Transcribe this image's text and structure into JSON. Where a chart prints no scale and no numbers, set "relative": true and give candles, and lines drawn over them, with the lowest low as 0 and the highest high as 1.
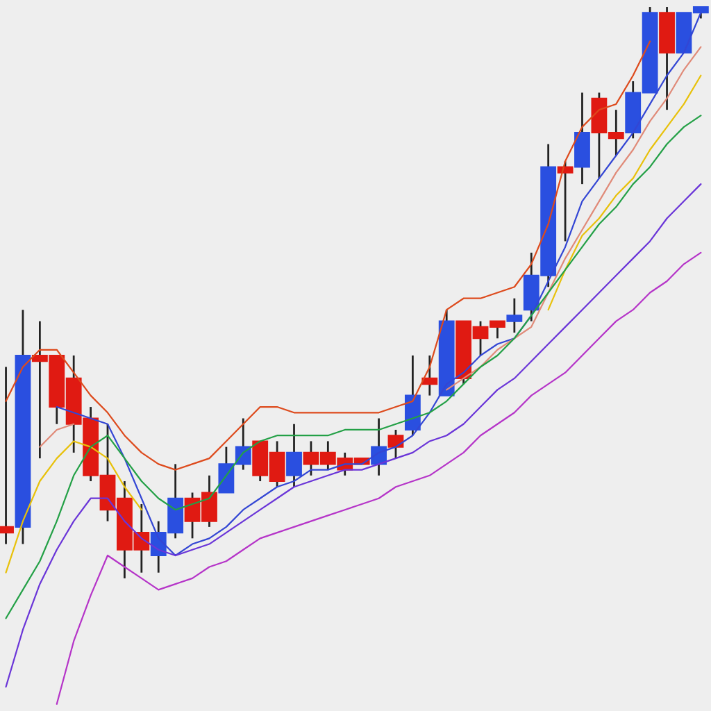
{
  "chart_data": {
    "type": "candlestick",
    "relative": true,
    "categories": [
      null,
      null,
      null,
      null,
      null,
      null,
      null,
      null,
      null,
      null,
      null,
      null,
      null,
      null,
      null,
      null,
      null,
      null,
      null,
      null,
      null,
      null,
      null,
      null,
      null,
      null,
      null,
      null,
      null,
      null,
      null,
      null,
      null,
      null,
      null,
      null,
      null,
      null,
      null,
      null,
      null,
      null
    ],
    "ohlc": [
      [
        0.09,
        0.37,
        0.06,
        0.08
      ],
      [
        0.09,
        0.47,
        0.06,
        0.39
      ],
      [
        0.39,
        0.45,
        0.21,
        0.38
      ],
      [
        0.39,
        0.39,
        0.27,
        0.3
      ],
      [
        0.35,
        0.39,
        0.22,
        0.27
      ],
      [
        0.28,
        0.3,
        0.17,
        0.18
      ],
      [
        0.18,
        0.27,
        0.1,
        0.12
      ],
      [
        0.14,
        0.17,
        0.0,
        0.05
      ],
      [
        0.08,
        0.13,
        0.01,
        0.05
      ],
      [
        0.04,
        0.1,
        0.01,
        0.08
      ],
      [
        0.08,
        0.2,
        0.07,
        0.14
      ],
      [
        0.14,
        0.15,
        0.07,
        0.1
      ],
      [
        0.15,
        0.18,
        0.09,
        0.1
      ],
      [
        0.15,
        0.23,
        0.15,
        0.2
      ],
      [
        0.2,
        0.28,
        0.19,
        0.23
      ],
      [
        0.24,
        0.24,
        0.17,
        0.18
      ],
      [
        0.22,
        0.24,
        0.16,
        0.17
      ],
      [
        0.18,
        0.27,
        0.16,
        0.22
      ],
      [
        0.22,
        0.24,
        0.18,
        0.2
      ],
      [
        0.22,
        0.24,
        0.19,
        0.2
      ],
      [
        0.21,
        0.22,
        0.18,
        0.19
      ],
      [
        0.21,
        0.21,
        0.2,
        0.2
      ],
      [
        0.2,
        0.28,
        0.18,
        0.23
      ],
      [
        0.25,
        0.26,
        0.21,
        0.23
      ],
      [
        0.26,
        0.39,
        0.25,
        0.32
      ],
      [
        0.35,
        0.39,
        0.32,
        0.34
      ],
      [
        0.32,
        0.47,
        0.32,
        0.45
      ],
      [
        0.45,
        0.45,
        0.34,
        0.35
      ],
      [
        0.44,
        0.45,
        0.39,
        0.42
      ],
      [
        0.45,
        0.45,
        0.42,
        0.44
      ],
      [
        0.45,
        0.49,
        0.43,
        0.46
      ],
      [
        0.47,
        0.57,
        0.45,
        0.53
      ],
      [
        0.53,
        0.76,
        0.51,
        0.72
      ],
      [
        0.72,
        0.73,
        0.59,
        0.71
      ],
      [
        0.72,
        0.85,
        0.69,
        0.78
      ],
      [
        0.84,
        0.85,
        0.7,
        0.78
      ],
      [
        0.78,
        0.82,
        0.74,
        0.77
      ],
      [
        0.78,
        0.87,
        0.77,
        0.85
      ],
      [
        0.85,
        1.0,
        0.85,
        0.99
      ],
      [
        0.99,
        1.0,
        0.82,
        0.92
      ],
      [
        0.92,
        0.99,
        0.92,
        0.99
      ],
      [
        0.99,
        1.0,
        0.98,
        1.0
      ]
    ],
    "colors": [
      "#e01a12",
      "#2a4fe0",
      "#e01a12",
      "#e01a12",
      "#e01a12",
      "#e01a12",
      "#e01a12",
      "#e01a12",
      "#e01a12",
      "#2a4fe0",
      "#2a4fe0",
      "#e01a12",
      "#e01a12",
      "#2a4fe0",
      "#2a4fe0",
      "#e01a12",
      "#e01a12",
      "#2a4fe0",
      "#e01a12",
      "#e01a12",
      "#e01a12",
      "#e01a12",
      "#2a4fe0",
      "#e01a12",
      "#2a4fe0",
      "#e01a12",
      "#2a4fe0",
      "#e01a12",
      "#e01a12",
      "#e01a12",
      "#2a4fe0",
      "#2a4fe0",
      "#2a4fe0",
      "#e01a12",
      "#2a4fe0",
      "#e01a12",
      "#e01a12",
      "#2a4fe0",
      "#2a4fe0",
      "#e01a12",
      "#2a4fe0",
      "#2a4fe0"
    ],
    "series": [
      {
        "type": "line",
        "color": "#dd4a1c",
        "values": [
          0.31,
          0.37,
          0.4,
          0.4,
          0.36,
          0.32,
          0.29,
          0.25,
          0.22,
          0.2,
          0.19,
          0.2,
          0.21,
          0.24,
          0.27,
          0.3,
          0.3,
          0.29,
          0.29,
          0.29,
          0.29,
          0.29,
          0.29,
          0.3,
          0.31,
          0.37,
          0.47,
          0.49,
          0.49,
          0.5,
          0.51,
          0.55,
          0.62,
          0.73,
          0.79,
          0.82,
          0.83,
          0.88,
          0.94,
          null,
          null,
          null
        ]
      },
      {
        "type": "line",
        "color": "#3346d4",
        "values": [
          null,
          null,
          null,
          0.3,
          0.29,
          0.28,
          0.27,
          0.21,
          0.14,
          0.07,
          0.04,
          0.06,
          0.07,
          0.09,
          0.12,
          0.14,
          0.16,
          0.17,
          0.19,
          0.19,
          0.2,
          0.2,
          0.22,
          0.23,
          0.25,
          0.29,
          0.34,
          0.36,
          0.39,
          0.41,
          0.42,
          0.46,
          0.52,
          0.58,
          0.66,
          0.7,
          0.74,
          0.78,
          0.83,
          0.88,
          0.92,
          0.99
        ]
      },
      {
        "type": "line",
        "color": "#e08a78",
        "values": [
          null,
          null,
          0.23,
          0.26,
          0.27,
          null,
          null,
          null,
          null,
          null,
          null,
          null,
          null,
          null,
          null,
          null,
          null,
          null,
          null,
          null,
          null,
          null,
          null,
          null,
          null,
          null,
          0.33,
          0.35,
          0.37,
          0.4,
          0.42,
          0.44,
          0.5,
          0.56,
          0.61,
          0.66,
          0.71,
          0.75,
          0.8,
          0.84,
          0.89,
          0.93
        ]
      },
      {
        "type": "line",
        "color": "#e8c10a",
        "values": [
          0.01,
          0.1,
          0.17,
          0.21,
          0.24,
          0.23,
          0.21,
          0.16,
          0.12,
          null,
          null,
          null,
          null,
          null,
          null,
          null,
          null,
          null,
          null,
          null,
          null,
          null,
          null,
          null,
          null,
          null,
          null,
          null,
          null,
          null,
          null,
          null,
          0.47,
          0.54,
          0.6,
          0.63,
          0.67,
          0.7,
          0.75,
          0.79,
          0.83,
          0.88
        ]
      },
      {
        "type": "line",
        "color": "#23a046",
        "values": [
          -0.07,
          -0.02,
          0.03,
          0.1,
          0.18,
          0.23,
          0.25,
          0.21,
          0.17,
          0.14,
          0.12,
          0.13,
          0.14,
          0.18,
          0.22,
          0.24,
          0.25,
          0.25,
          0.25,
          0.25,
          0.26,
          0.26,
          0.26,
          0.27,
          0.28,
          0.29,
          0.31,
          0.34,
          0.37,
          0.39,
          0.42,
          0.46,
          0.5,
          0.54,
          0.58,
          0.62,
          0.65,
          0.69,
          0.72,
          0.76,
          0.79,
          0.81
        ]
      },
      {
        "type": "line",
        "color": "#6a35d8",
        "values": [
          -0.19,
          -0.09,
          -0.01,
          0.05,
          0.1,
          0.14,
          0.14,
          0.1,
          0.07,
          0.05,
          0.04,
          0.05,
          0.06,
          0.08,
          0.1,
          0.12,
          0.14,
          0.16,
          0.17,
          0.18,
          0.19,
          0.19,
          0.2,
          0.21,
          0.22,
          0.24,
          0.25,
          0.27,
          0.3,
          0.33,
          0.35,
          0.38,
          0.41,
          0.44,
          0.47,
          0.5,
          0.53,
          0.56,
          0.59,
          0.63,
          0.66,
          0.69
        ]
      },
      {
        "type": "line",
        "color": "#b534c8",
        "values": [
          null,
          null,
          null,
          -0.22,
          -0.11,
          -0.03,
          0.04,
          0.02,
          0.0,
          -0.02,
          -0.01,
          0.0,
          0.02,
          0.03,
          0.05,
          0.07,
          0.08,
          0.09,
          0.1,
          0.11,
          0.12,
          0.13,
          0.14,
          0.16,
          0.17,
          0.18,
          0.2,
          0.22,
          0.25,
          0.27,
          0.29,
          0.32,
          0.34,
          0.36,
          0.39,
          0.42,
          0.45,
          0.47,
          0.5,
          0.52,
          0.55,
          0.57
        ]
      }
    ]
  }
}
